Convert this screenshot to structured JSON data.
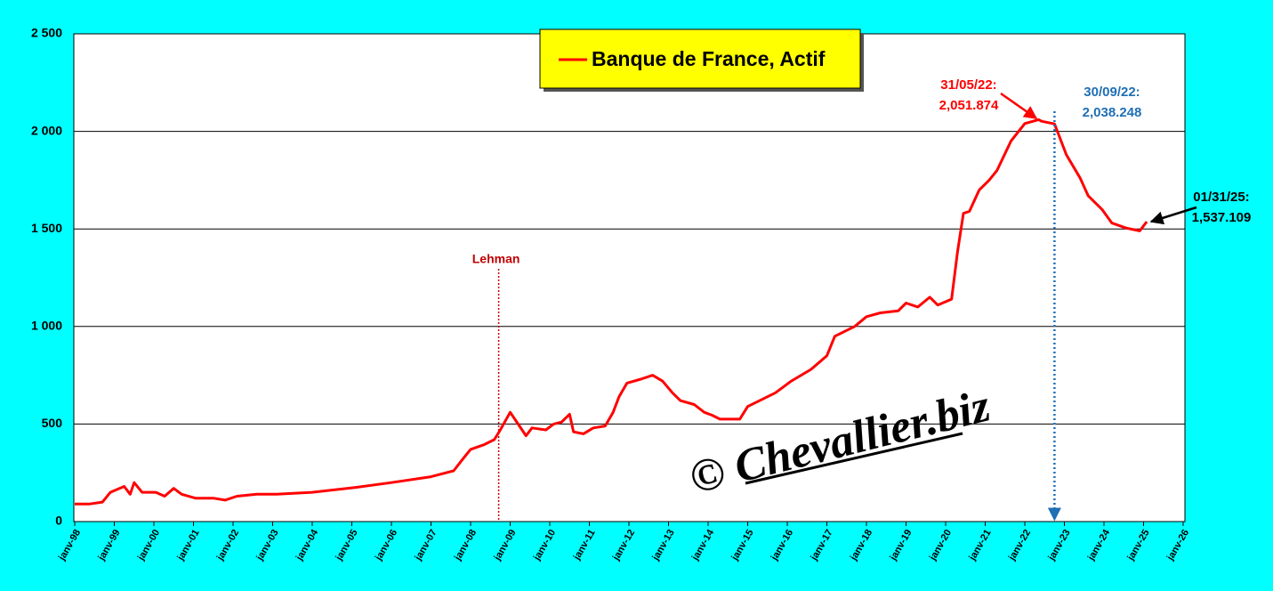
{
  "chart_data": {
    "type": "line",
    "legend": "box",
    "grid": true,
    "xlim": [
      1998,
      2026
    ],
    "ylim": [
      0,
      2500
    ],
    "yticks": [
      {
        "value": 0,
        "label": "0"
      },
      {
        "value": 500,
        "label": "500"
      },
      {
        "value": 1000,
        "label": "1 000"
      },
      {
        "value": 1500,
        "label": "1 500"
      },
      {
        "value": 2000,
        "label": "2 000"
      },
      {
        "value": 2500,
        "label": "2 500"
      }
    ],
    "xticks": [
      {
        "value": 1998,
        "label": "janv-98"
      },
      {
        "value": 1999,
        "label": "janv-99"
      },
      {
        "value": 2000,
        "label": "janv-00"
      },
      {
        "value": 2001,
        "label": "janv-01"
      },
      {
        "value": 2002,
        "label": "janv-02"
      },
      {
        "value": 2003,
        "label": "janv-03"
      },
      {
        "value": 2004,
        "label": "janv-04"
      },
      {
        "value": 2005,
        "label": "janv-05"
      },
      {
        "value": 2006,
        "label": "janv-06"
      },
      {
        "value": 2007,
        "label": "janv-07"
      },
      {
        "value": 2008,
        "label": "janv-08"
      },
      {
        "value": 2009,
        "label": "janv-09"
      },
      {
        "value": 2010,
        "label": "janv-10"
      },
      {
        "value": 2011,
        "label": "janv-11"
      },
      {
        "value": 2012,
        "label": "janv-12"
      },
      {
        "value": 2013,
        "label": "janv-13"
      },
      {
        "value": 2014,
        "label": "janv-14"
      },
      {
        "value": 2015,
        "label": "janv-15"
      },
      {
        "value": 2016,
        "label": "janv-16"
      },
      {
        "value": 2017,
        "label": "janv-17"
      },
      {
        "value": 2018,
        "label": "janv-18"
      },
      {
        "value": 2019,
        "label": "janv-19"
      },
      {
        "value": 2020,
        "label": "janv-20"
      },
      {
        "value": 2021,
        "label": "janv-21"
      },
      {
        "value": 2022,
        "label": "janv-22"
      },
      {
        "value": 2023,
        "label": "janv-23"
      },
      {
        "value": 2024,
        "label": "janv-24"
      },
      {
        "value": 2025,
        "label": "janv-25"
      },
      {
        "value": 2026,
        "label": "janv-26"
      }
    ],
    "x": [
      1998.0,
      1998.36,
      1998.7,
      1998.9,
      1999.25,
      1999.4,
      1999.5,
      1999.7,
      2000.05,
      2000.27,
      2000.5,
      2000.7,
      2001.05,
      2001.5,
      2001.8,
      2002.1,
      2002.6,
      2003.1,
      2004.0,
      2005.1,
      2006.0,
      2007.0,
      2007.57,
      2007.8,
      2008.0,
      2008.35,
      2008.6,
      2008.75,
      2009.0,
      2009.2,
      2009.4,
      2009.55,
      2009.9,
      2010.1,
      2010.3,
      2010.5,
      2010.6,
      2010.85,
      2011.1,
      2011.4,
      2011.6,
      2011.75,
      2011.95,
      2012.3,
      2012.6,
      2012.85,
      2013.1,
      2013.3,
      2013.65,
      2013.9,
      2014.1,
      2014.3,
      2014.8,
      2015.0,
      2015.2,
      2015.7,
      2016.1,
      2016.6,
      2017.0,
      2017.2,
      2017.7,
      2018.0,
      2018.35,
      2018.8,
      2019.0,
      2019.3,
      2019.6,
      2019.8,
      2020.15,
      2020.3,
      2020.45,
      2020.6,
      2020.85,
      2021.1,
      2021.3,
      2021.65,
      2022.0,
      2022.35,
      2022.42,
      2022.75,
      2023.05,
      2023.4,
      2023.6,
      2023.95,
      2024.2,
      2024.55,
      2024.9,
      2025.08
    ],
    "series": [
      {
        "name": "Banque de France, Actif",
        "color": "#ff0000",
        "values": [
          90,
          90,
          100,
          150,
          180,
          140,
          200,
          150,
          150,
          130,
          170,
          140,
          120,
          120,
          110,
          130,
          140,
          140,
          150,
          175,
          200,
          230,
          260,
          320,
          370,
          395,
          420,
          470,
          560,
          500,
          440,
          480,
          470,
          500,
          510,
          550,
          460,
          450,
          480,
          490,
          560,
          640,
          710,
          730,
          750,
          720,
          660,
          620,
          600,
          560,
          545,
          525,
          525,
          590,
          610,
          660,
          720,
          780,
          850,
          950,
          1000,
          1050,
          1070,
          1080,
          1120,
          1100,
          1150,
          1110,
          1140,
          1380,
          1580,
          1590,
          1700,
          1750,
          1800,
          1950,
          2040,
          2060,
          2051.874,
          2038.248,
          1880,
          1760,
          1670,
          1600,
          1530,
          1505,
          1490,
          1537.109
        ]
      }
    ],
    "annotations": [
      {
        "label": "31/05/22:",
        "value_label": "2,051.874",
        "x": 2022.42,
        "y": 2051.874,
        "color": "#ff0000"
      },
      {
        "label": "30/09/22:",
        "value_label": "2,038.248",
        "x": 2022.75,
        "y": 2038.248,
        "color": "#1f6fb5"
      },
      {
        "label": "01/31/25:",
        "value_label": "1,537.109",
        "x": 2025.08,
        "y": 1537.109,
        "color": "#000000"
      }
    ],
    "event": {
      "label": "Lehman",
      "x": 2008.71,
      "color": "#c00000"
    },
    "watermark": "© Chevallier.biz"
  }
}
